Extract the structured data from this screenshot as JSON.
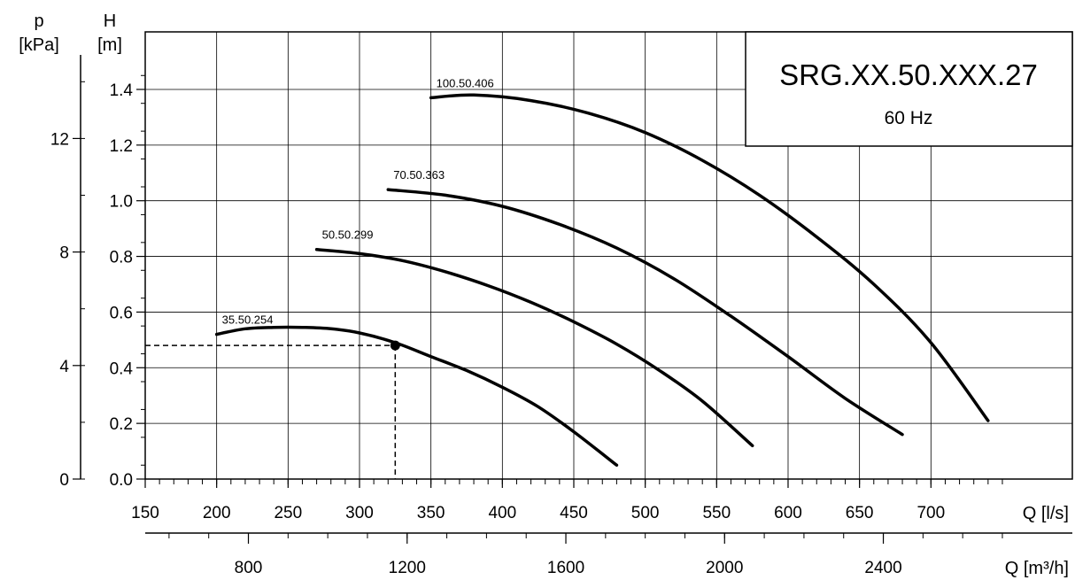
{
  "chart_data": {
    "type": "line",
    "title": "SRG.XX.50.XXX.27",
    "subtitle": "60 Hz",
    "xlabel": "Q [l/s]",
    "x2label": "Q [m³/h]",
    "ylabel_var": "H",
    "ylabel_unit": "[m]",
    "y2label_var": "p",
    "y2label_unit": "[kPa]",
    "xlim": [
      150,
      750
    ],
    "ylim": [
      0,
      1.4
    ],
    "x_ticks": [
      "150",
      "200",
      "250",
      "300",
      "350",
      "400",
      "450",
      "500",
      "550",
      "600",
      "650",
      "700"
    ],
    "y_ticks": [
      "0.0",
      "0.2",
      "0.4",
      "0.6",
      "0.8",
      "1.0",
      "1.2",
      "1.4"
    ],
    "x2_ticks": [
      "800",
      "1200",
      "1600",
      "2000",
      "2400"
    ],
    "y2_ticks": [
      "0",
      "4",
      "8",
      "12"
    ],
    "grid": true,
    "series": [
      {
        "name": "35.50.254",
        "x": [
          200,
          220,
          240,
          260,
          280,
          300,
          325,
          350,
          375,
          400,
          425,
          450,
          480
        ],
        "y": [
          0.52,
          0.54,
          0.545,
          0.545,
          0.54,
          0.525,
          0.49,
          0.44,
          0.39,
          0.33,
          0.26,
          0.17,
          0.05
        ]
      },
      {
        "name": "50.50.299",
        "x": [
          270,
          300,
          330,
          360,
          390,
          420,
          450,
          480,
          510,
          540,
          575
        ],
        "y": [
          0.825,
          0.81,
          0.785,
          0.745,
          0.695,
          0.635,
          0.565,
          0.485,
          0.39,
          0.28,
          0.12
        ]
      },
      {
        "name": "70.50.363",
        "x": [
          320,
          360,
          400,
          440,
          480,
          520,
          560,
          600,
          640,
          680
        ],
        "y": [
          1.04,
          1.02,
          0.98,
          0.915,
          0.83,
          0.72,
          0.585,
          0.44,
          0.29,
          0.16
        ]
      },
      {
        "name": "100.50.406",
        "x": [
          350,
          380,
          420,
          460,
          500,
          540,
          580,
          620,
          660,
          700,
          740
        ],
        "y": [
          1.37,
          1.38,
          1.36,
          1.315,
          1.245,
          1.145,
          1.02,
          0.87,
          0.7,
          0.49,
          0.21
        ]
      }
    ],
    "operating_point": {
      "x": 325,
      "y": 0.48
    }
  }
}
